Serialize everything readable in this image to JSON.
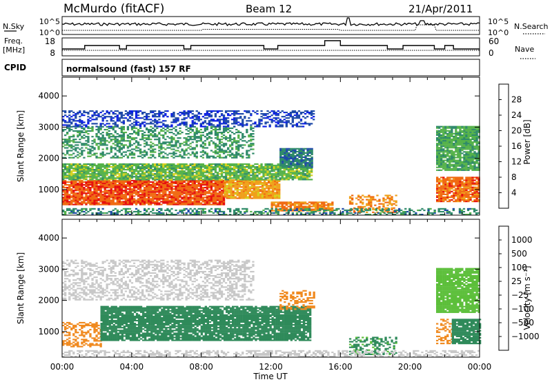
{
  "header": {
    "title": "McMurdo (fitACF)",
    "beam": "Beam 12",
    "date": "21/Apr/2011"
  },
  "status": {
    "nsky_label": "N.Sky",
    "nsky_ticks": [
      "10^5",
      "10^0"
    ],
    "nsearch_label": "N.Search",
    "nsearch_ticks": [
      "10^5",
      "10^0"
    ],
    "freq_label_1": "Freq.",
    "freq_label_2": "[MHz]",
    "freq_ticks": [
      "18",
      "8"
    ],
    "nave_label": "Nave",
    "nave_ticks": [
      "60",
      "0"
    ],
    "cpid_label": "CPID",
    "cpid_value": "normalsound (fast) 157 RF"
  },
  "chart_data": [
    {
      "type": "heatmap",
      "panel": "power",
      "ylabel": "Slant Range [km]",
      "xlabel": "",
      "x_ticks": [
        "00:00",
        "04:00",
        "08:00",
        "12:00",
        "16:00",
        "20:00",
        "00:00"
      ],
      "xlim_hours": [
        0,
        24
      ],
      "y_ticks": [
        1000,
        2000,
        3000,
        4000
      ],
      "ylim": [
        180,
        4600
      ],
      "colorbar": {
        "label": "Power [dB]",
        "ticks": [
          "4",
          "8",
          "12",
          "16",
          "20",
          "24",
          "28"
        ],
        "range": [
          0,
          32
        ],
        "colors": [
          "#0a1ee6",
          "#1f4aa8",
          "#2f8a6a",
          "#55b24a",
          "#d6d21e",
          "#f0a01a",
          "#f06a12",
          "#e61010"
        ]
      },
      "regions": [
        {
          "t": [
            0.0,
            9.3
          ],
          "r": [
            500,
            1300
          ],
          "v": 27
        },
        {
          "t": [
            9.3,
            12.5
          ],
          "r": [
            700,
            1300
          ],
          "v": 22
        },
        {
          "t": [
            0.0,
            14.3
          ],
          "r": [
            1300,
            1800
          ],
          "v": 14
        },
        {
          "t": [
            0.0,
            11.0
          ],
          "r": [
            2000,
            3000
          ],
          "v": 11
        },
        {
          "t": [
            12.5,
            14.3
          ],
          "r": [
            1700,
            2300
          ],
          "v": 9
        },
        {
          "t": [
            0.0,
            14.5
          ],
          "r": [
            3000,
            3500
          ],
          "v": 5
        },
        {
          "t": [
            12.0,
            15.5
          ],
          "r": [
            300,
            600
          ],
          "v": 25
        },
        {
          "t": [
            16.5,
            19.2
          ],
          "r": [
            250,
            800
          ],
          "v": 24
        },
        {
          "t": [
            21.5,
            24.0
          ],
          "r": [
            600,
            1400
          ],
          "v": 26
        },
        {
          "t": [
            21.5,
            24.0
          ],
          "r": [
            1600,
            3000
          ],
          "v": 13
        },
        {
          "t": [
            0.0,
            24.0
          ],
          "r": [
            180,
            400
          ],
          "v": 10
        }
      ]
    },
    {
      "type": "heatmap",
      "panel": "velocity",
      "ylabel": "Slant Range [km]",
      "xlabel": "Time UT",
      "x_ticks": [
        "00:00",
        "04:00",
        "08:00",
        "12:00",
        "16:00",
        "20:00",
        "00:00"
      ],
      "xlim_hours": [
        0,
        24
      ],
      "y_ticks": [
        1000,
        2000,
        3000,
        4000
      ],
      "ylim": [
        180,
        4600
      ],
      "colorbar": {
        "label": "Velocity [m s⁻¹]",
        "ticks": [
          "1000",
          "500",
          "100",
          "25",
          "−25",
          "−100",
          "−500",
          "−1000"
        ],
        "colors": [
          "#1a30d0",
          "#2a6ab0",
          "#2f8a5a",
          "#5cbf3a",
          "#c8c8c8",
          "#f0b040",
          "#f08a20",
          "#f05018",
          "#e01010"
        ]
      },
      "regions": [
        {
          "t": [
            0.0,
            2.2
          ],
          "r": [
            500,
            1300
          ],
          "v": -300
        },
        {
          "t": [
            2.2,
            14.3
          ],
          "r": [
            700,
            1800
          ],
          "v": 150
        },
        {
          "t": [
            0.0,
            11.0
          ],
          "r": [
            2000,
            3300
          ],
          "v": 0
        },
        {
          "t": [
            12.5,
            14.5
          ],
          "r": [
            1700,
            2300
          ],
          "v": -200
        },
        {
          "t": [
            16.5,
            19.2
          ],
          "r": [
            250,
            800
          ],
          "v": 120
        },
        {
          "t": [
            21.5,
            22.4
          ],
          "r": [
            600,
            1400
          ],
          "v": -300
        },
        {
          "t": [
            22.4,
            24.0
          ],
          "r": [
            600,
            1400
          ],
          "v": 150
        },
        {
          "t": [
            21.5,
            24.0
          ],
          "r": [
            1600,
            3000
          ],
          "v": 50
        },
        {
          "t": [
            0.0,
            24.0
          ],
          "r": [
            180,
            400
          ],
          "v": 0
        }
      ]
    }
  ]
}
